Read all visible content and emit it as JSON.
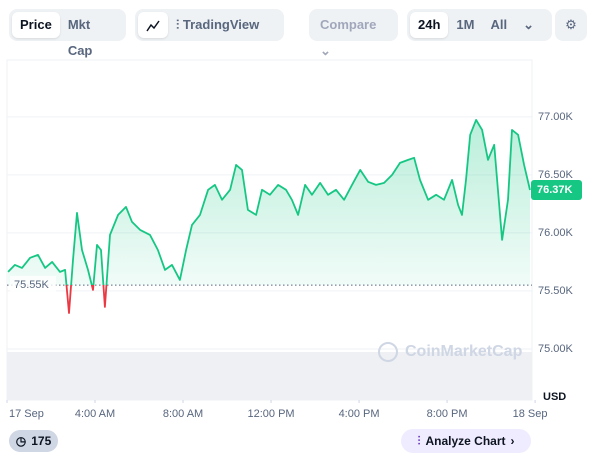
{
  "toolbar": {
    "tabs": [
      "Price",
      "Mkt Cap"
    ],
    "tradingview": "TradingView",
    "compare": "Compare",
    "ranges": [
      "24h",
      "1M",
      "All"
    ]
  },
  "chart_data": {
    "type": "line",
    "x": [
      0.05,
      0.36,
      0.68,
      1.05,
      1.41,
      1.73,
      2.05,
      2.41,
      2.64,
      2.82,
      3.0,
      3.18,
      3.41,
      3.68,
      3.91,
      4.09,
      4.27,
      4.45,
      4.68,
      5.05,
      5.41,
      5.68,
      6.05,
      6.5,
      6.86,
      7.18,
      7.5,
      7.86,
      8.14,
      8.41,
      8.77,
      9.14,
      9.45,
      9.77,
      10.14,
      10.41,
      10.68,
      10.95,
      11.32,
      11.59,
      11.95,
      12.32,
      12.68,
      12.95,
      13.23,
      13.55,
      13.86,
      14.23,
      14.59,
      14.95,
      15.32,
      15.68,
      16.05,
      16.41,
      16.77,
      17.14,
      17.5,
      17.86,
      18.23,
      18.5,
      18.77,
      19.14,
      19.5,
      19.86,
      20.23,
      20.5,
      20.68,
      20.86,
      21.05,
      21.32,
      21.59,
      21.86,
      22.14,
      22.5,
      22.77,
      22.95,
      23.23,
      23.5,
      23.77
    ],
    "values": [
      75664,
      75724,
      75698,
      75785,
      75810,
      75698,
      75750,
      75664,
      75681,
      75310,
      75767,
      76172,
      75853,
      75681,
      75509,
      75897,
      75853,
      75362,
      75983,
      76155,
      76224,
      76095,
      76026,
      75983,
      75853,
      75681,
      75724,
      75595,
      75853,
      76069,
      76155,
      76371,
      76414,
      76285,
      76371,
      76586,
      76543,
      76198,
      76155,
      76371,
      76328,
      76414,
      76371,
      76285,
      76155,
      76414,
      76328,
      76431,
      76328,
      76371,
      76285,
      76414,
      76543,
      76440,
      76414,
      76431,
      76500,
      76603,
      76629,
      76647,
      76457,
      76285,
      76328,
      76285,
      76457,
      76241,
      76155,
      76457,
      76845,
      76974,
      76888,
      76629,
      76759,
      75940,
      76285,
      76888,
      76845,
      76586,
      76370
    ],
    "color": "#16c784",
    "down_color": "#ea3943",
    "xlim": [
      0,
      23.86
    ],
    "xticks": [
      {
        "value": 0,
        "label": "17 Sep"
      },
      {
        "value": 4,
        "label": "4:00 AM"
      },
      {
        "value": 8,
        "label": "8:00 AM"
      },
      {
        "value": 12,
        "label": "12:00 PM"
      },
      {
        "value": 16,
        "label": "4:00 PM"
      },
      {
        "value": 20,
        "label": "8:00 PM"
      },
      {
        "value": 24,
        "label": "18 Sep"
      }
    ],
    "ylim": [
      74560,
      77490
    ],
    "yticks": [
      {
        "value": 75000,
        "label": "75.00K"
      },
      {
        "value": 75500,
        "label": "75.50K"
      },
      {
        "value": 76000,
        "label": "76.00K"
      },
      {
        "value": 76500,
        "label": "76.50K"
      },
      {
        "value": 77000,
        "label": "77.00K"
      }
    ],
    "grid": true,
    "baseline": {
      "value": 75550,
      "label": "75.55K"
    },
    "last_price": {
      "value": 76370,
      "label": "76.37K"
    },
    "currency": "USD",
    "watermark": "CoinMarketCap"
  },
  "footer": {
    "badge": "175",
    "analyze": "Analyze Chart"
  }
}
